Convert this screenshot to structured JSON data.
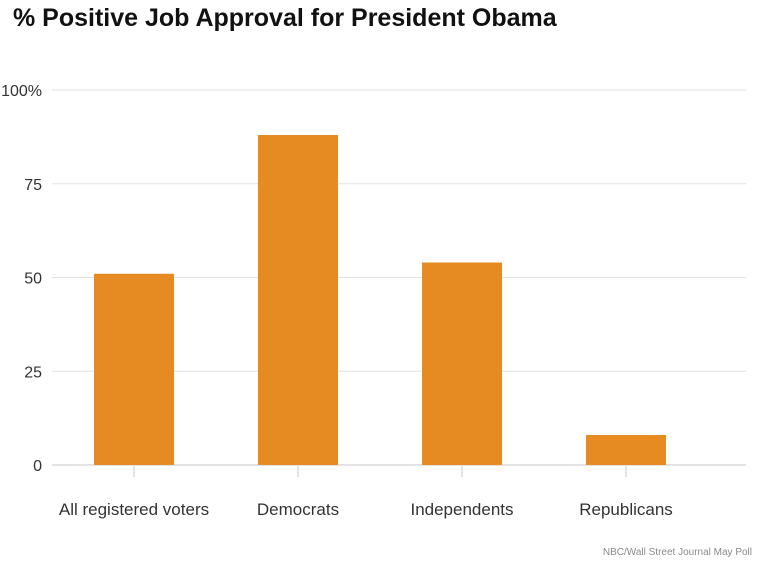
{
  "chart_data": {
    "type": "bar",
    "title": "% Positive Job Approval for President Obama",
    "categories": [
      "All registered voters",
      "Democrats",
      "Independents",
      "Republicans"
    ],
    "values": [
      51,
      88,
      54,
      8
    ],
    "ylim": [
      0,
      100
    ],
    "yticks": [
      0,
      25,
      50,
      75,
      100
    ],
    "ytick_labels": [
      "0",
      "25",
      "50",
      "75",
      "100%"
    ],
    "grid": true,
    "bar_color": "#E68A22",
    "source": "NBC/Wall Street Journal May Poll"
  }
}
